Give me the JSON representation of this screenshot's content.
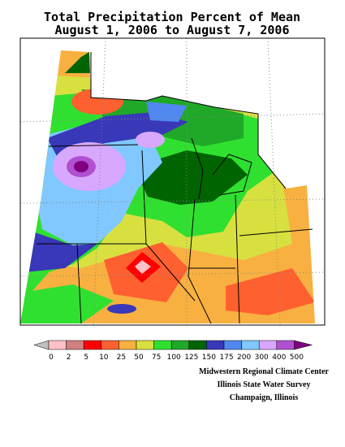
{
  "header": {
    "title": "Total Precipitation Percent of Mean",
    "subtitle": "August 1, 2006 to August 7, 2006"
  },
  "legend": {
    "ticks": [
      0,
      2,
      5,
      10,
      25,
      50,
      75,
      100,
      125,
      150,
      175,
      200,
      300,
      400,
      500
    ],
    "below_color": "#c0c0c0",
    "above_color": "#800080",
    "colors": [
      "#ffc0c8",
      "#d08080",
      "#ff0000",
      "#ff6030",
      "#f8b040",
      "#d8e040",
      "#30e030",
      "#20a828",
      "#006400",
      "#3838b8",
      "#5088f0",
      "#80c8ff",
      "#d8a8ff",
      "#b050d0"
    ]
  },
  "credits": [
    "Midwestern Regional Climate Center",
    "Illinois State Water Survey",
    "Champaign, Illinois"
  ]
}
